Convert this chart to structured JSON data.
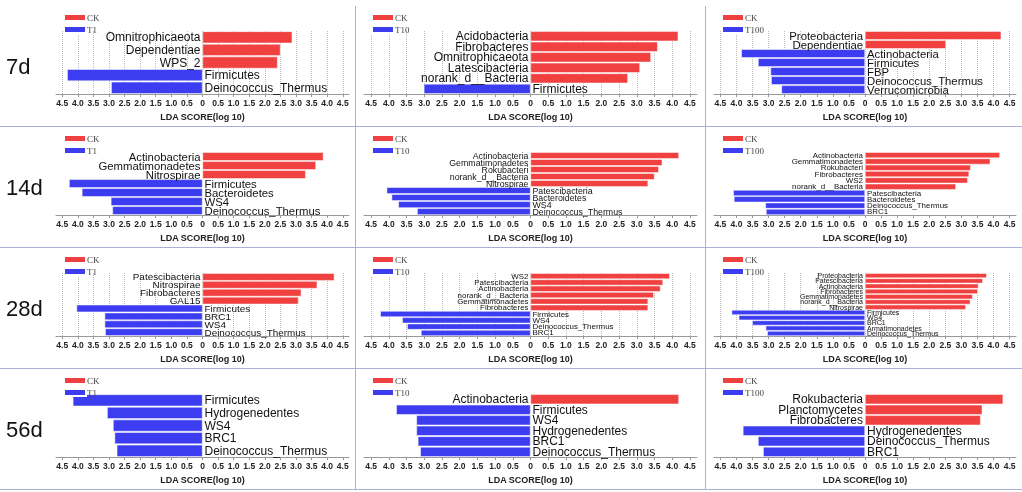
{
  "chart_data": [
    {
      "type": "bar",
      "orientation": "horizontal",
      "annotations": [
        "7d"
      ],
      "legend": "top left",
      "grid": "x",
      "tick_labels": "x",
      "xlabel": "LDA SCORE(log 10)",
      "xlim": [
        -4.7,
        4.7
      ],
      "xticks": [
        {
          "value": -4.5,
          "label": "4.5"
        },
        {
          "value": -4,
          "label": "4.0"
        },
        {
          "value": -3.5,
          "label": "3.5"
        },
        {
          "value": -3,
          "label": "3.0"
        },
        {
          "value": -2.5,
          "label": "2.5"
        },
        {
          "value": -2,
          "label": "2.0"
        },
        {
          "value": -1.5,
          "label": "1.5"
        },
        {
          "value": -1,
          "label": "1.0"
        },
        {
          "value": -0.5,
          "label": "0.5"
        },
        0,
        0.5,
        {
          "value": 1,
          "label": "1.0"
        },
        1.5,
        {
          "value": 2,
          "label": "2.0"
        },
        2.5,
        {
          "value": 3,
          "label": "3.0"
        },
        3.5,
        {
          "value": 4,
          "label": "4.0"
        },
        4.5
      ],
      "categories": [
        "Omnitrophicaeota",
        "Dependentiae",
        "WPS_2",
        "Firmicutes",
        "Deinococcus_Thermus"
      ],
      "series": [
        {
          "name": "CK",
          "color": "#f04040",
          "values": [
            2.88,
            2.5,
            2.41,
            null,
            null
          ]
        },
        {
          "name": "T1",
          "color": "#3c3cf0",
          "values": [
            null,
            null,
            null,
            -4.34,
            -2.93
          ]
        }
      ]
    },
    {
      "type": "bar",
      "orientation": "horizontal",
      "legend": "top left",
      "grid": "x",
      "tick_labels": "x",
      "xlabel": "LDA SCORE(log 10)",
      "xlim": [
        -4.7,
        4.7
      ],
      "xticks": [
        {
          "value": -4.5,
          "label": "4.5"
        },
        {
          "value": -4,
          "label": "4.0"
        },
        {
          "value": -3.5,
          "label": "3.5"
        },
        {
          "value": -3,
          "label": "3.0"
        },
        {
          "value": -2.5,
          "label": "2.5"
        },
        {
          "value": -2,
          "label": "2.0"
        },
        {
          "value": -1.5,
          "label": "1.5"
        },
        {
          "value": -1,
          "label": "1.0"
        },
        {
          "value": -0.5,
          "label": "0.5"
        },
        0,
        0.5,
        {
          "value": 1,
          "label": "1.0"
        },
        1.5,
        {
          "value": 2,
          "label": "2.0"
        },
        2.5,
        {
          "value": 3,
          "label": "3.0"
        },
        3.5,
        {
          "value": 4,
          "label": "4.0"
        },
        4.5
      ],
      "categories": [
        "Acidobacteria",
        "Fibrobacteres",
        "Omnitrophicaeota",
        "Latescibacteria",
        "norank_d__Bacteria",
        "Firmicutes"
      ],
      "series": [
        {
          "name": "CK",
          "color": "#f04040",
          "values": [
            4.17,
            3.59,
            3.4,
            3.09,
            2.75,
            null
          ]
        },
        {
          "name": "T10",
          "color": "#3c3cf0",
          "values": [
            null,
            null,
            null,
            null,
            null,
            -3.01
          ]
        }
      ]
    },
    {
      "type": "bar",
      "orientation": "horizontal",
      "legend": "top left",
      "grid": "x",
      "tick_labels": "x",
      "xlabel": "LDA SCORE(log 10)",
      "xlim": [
        -4.7,
        4.7
      ],
      "xticks": [
        {
          "value": -4.5,
          "label": "4.5"
        },
        {
          "value": -4,
          "label": "4.0"
        },
        {
          "value": -3.5,
          "label": "3.5"
        },
        {
          "value": -3,
          "label": "3.0"
        },
        {
          "value": -2.5,
          "label": "2.5"
        },
        {
          "value": -2,
          "label": "2.0"
        },
        {
          "value": -1.5,
          "label": "1.5"
        },
        {
          "value": -1,
          "label": "1.0"
        },
        {
          "value": -0.5,
          "label": "0.5"
        },
        0,
        0.5,
        {
          "value": 1,
          "label": "1.0"
        },
        1.5,
        {
          "value": 2,
          "label": "2.0"
        },
        2.5,
        {
          "value": 3,
          "label": "3.0"
        },
        3.5,
        {
          "value": 4,
          "label": "4.0"
        },
        4.5
      ],
      "categories": [
        "Proteobacteria",
        "Dependentiae",
        "Actinobacteria",
        "Firmicutes",
        "FBP",
        "Deinococcus_Thermus",
        "Verrucomicrobia"
      ],
      "series": [
        {
          "name": "CK",
          "color": "#f04040",
          "values": [
            4.24,
            2.52,
            null,
            null,
            null,
            null,
            null
          ]
        },
        {
          "name": "T100",
          "color": "#3c3cf0",
          "values": [
            null,
            null,
            -3.85,
            -3.33,
            -2.94,
            -2.92,
            -2.6
          ]
        }
      ]
    },
    {
      "type": "bar",
      "orientation": "horizontal",
      "annotations": [
        "14d"
      ],
      "legend": "top left",
      "tick_labels": "x",
      "xlabel": "LDA SCORE(log 10)",
      "xlim": [
        -4.7,
        4.7
      ],
      "xticks": [
        {
          "value": -4.5,
          "label": "4.5"
        },
        {
          "value": -4,
          "label": "4.0"
        },
        {
          "value": -3.5,
          "label": "3.5"
        },
        {
          "value": -3,
          "label": "3.0"
        },
        {
          "value": -2.5,
          "label": "2.5"
        },
        {
          "value": -2,
          "label": "2.0"
        },
        {
          "value": -1.5,
          "label": "1.5"
        },
        {
          "value": -1,
          "label": "1.0"
        },
        {
          "value": -0.5,
          "label": "0.5"
        },
        0,
        0.5,
        {
          "value": 1,
          "label": "1.0"
        },
        1.5,
        {
          "value": 2,
          "label": "2.0"
        },
        2.5,
        {
          "value": 3,
          "label": "3.0"
        },
        3.5,
        {
          "value": 4,
          "label": "4.0"
        },
        4.5
      ],
      "categories": [
        "Actinobacteria",
        "Gemmatimonadetes",
        "Nitrospirae",
        "Firmicutes",
        "Bacteroidetes",
        "WS4",
        "Deinococcus_Thermus"
      ],
      "series": [
        {
          "name": "CK",
          "color": "#f04040",
          "values": [
            3.88,
            3.64,
            3.31,
            null,
            null,
            null,
            null
          ]
        },
        {
          "name": "T1",
          "color": "#3c3cf0",
          "values": [
            null,
            null,
            null,
            -4.28,
            -3.87,
            -2.94,
            -2.89
          ]
        }
      ]
    },
    {
      "type": "bar",
      "orientation": "horizontal",
      "legend": "top left",
      "tick_labels": "x",
      "xlabel": "LDA SCORE(log 10)",
      "xlim": [
        -4.7,
        4.7
      ],
      "xticks": [
        {
          "value": -4.5,
          "label": "4.5"
        },
        {
          "value": -4,
          "label": "4.0"
        },
        {
          "value": -3.5,
          "label": "3.5"
        },
        {
          "value": -3,
          "label": "3.0"
        },
        {
          "value": -2.5,
          "label": "2.5"
        },
        {
          "value": -2,
          "label": "2.0"
        },
        {
          "value": -1.5,
          "label": "1.5"
        },
        {
          "value": -1,
          "label": "1.0"
        },
        {
          "value": -0.5,
          "label": "0.5"
        },
        0,
        0.5,
        {
          "value": 1,
          "label": "1.0"
        },
        1.5,
        {
          "value": 2,
          "label": "2.0"
        },
        2.5,
        {
          "value": 3,
          "label": "3.0"
        },
        3.5,
        {
          "value": 4,
          "label": "4.0"
        },
        4.5
      ],
      "categories": [
        "Actinobacteria",
        "Gemmatimonadetes",
        "Rokubacteri",
        "norank_d__Bacteria",
        "Nitrospirae",
        "Patescibacteria",
        "Bacteroidetes",
        "WS4",
        "Deinococcus_Thermus"
      ],
      "series": [
        {
          "name": "CK",
          "color": "#f04040",
          "values": [
            4.19,
            3.72,
            3.62,
            3.5,
            3.32,
            null,
            null,
            null,
            null
          ]
        },
        {
          "name": "T10",
          "color": "#3c3cf0",
          "values": [
            null,
            null,
            null,
            null,
            null,
            -4.06,
            -3.92,
            -3.73,
            -3.2
          ]
        }
      ]
    },
    {
      "type": "bar",
      "orientation": "horizontal",
      "legend": "top left",
      "tick_labels": "x",
      "xlabel": "LDA SCORE(log 10)",
      "xlim": [
        -4.7,
        4.7
      ],
      "xticks": [
        {
          "value": -4.5,
          "label": "4.5"
        },
        {
          "value": -4,
          "label": "4.0"
        },
        {
          "value": -3.5,
          "label": "3.5"
        },
        {
          "value": -3,
          "label": "3.0"
        },
        {
          "value": -2.5,
          "label": "2.5"
        },
        {
          "value": -2,
          "label": "2.0"
        },
        {
          "value": -1.5,
          "label": "1.5"
        },
        {
          "value": -1,
          "label": "1.0"
        },
        {
          "value": -0.5,
          "label": "0.5"
        },
        0,
        0.5,
        {
          "value": 1,
          "label": "1.0"
        },
        1.5,
        {
          "value": 2,
          "label": "2.0"
        },
        2.5,
        {
          "value": 3,
          "label": "3.0"
        },
        3.5,
        {
          "value": 4,
          "label": "4.0"
        },
        4.5
      ],
      "categories": [
        "Actinobacteria",
        "Gemmatimonadetes",
        "Rokubacteri",
        "Fibrobacteres",
        "WS2",
        "norank_d__Bacteria",
        "Patescibacteria",
        "Bacteroidetes",
        "Deinococcus_Thermus",
        "BRC1"
      ],
      "series": [
        {
          "name": "CK",
          "color": "#f04040",
          "values": [
            4.2,
            3.9,
            3.29,
            3.24,
            3.2,
            2.83,
            null,
            null,
            null,
            null
          ]
        },
        {
          "name": "T100",
          "color": "#3c3cf0",
          "values": [
            null,
            null,
            null,
            null,
            null,
            null,
            -4.1,
            -4.08,
            -3.1,
            -3.08
          ]
        }
      ]
    },
    {
      "type": "bar",
      "orientation": "horizontal",
      "annotations": [
        "28d"
      ],
      "legend": "top left",
      "grid": "x",
      "tick_labels": "x",
      "xlabel": "LDA SCORE(log 10)",
      "xlim": [
        -4.7,
        4.7
      ],
      "xticks": [
        {
          "value": -4.5,
          "label": "4.5"
        },
        {
          "value": -4,
          "label": "4.0"
        },
        {
          "value": -3.5,
          "label": "3.5"
        },
        {
          "value": -3,
          "label": "3.0"
        },
        {
          "value": -2.5,
          "label": "2.5"
        },
        {
          "value": -2,
          "label": "2.0"
        },
        {
          "value": -1.5,
          "label": "1.5"
        },
        {
          "value": -1,
          "label": "1.0"
        },
        {
          "value": -0.5,
          "label": "0.5"
        },
        0,
        0.5,
        {
          "value": 1,
          "label": "1.0"
        },
        1.5,
        {
          "value": 2,
          "label": "2.0"
        },
        2.5,
        {
          "value": 3,
          "label": "3.0"
        },
        3.5,
        {
          "value": 4,
          "label": "4.0"
        },
        4.5
      ],
      "categories": [
        "Patescibacteria",
        "Nitrospirae",
        "Fibrobacteres",
        "GAL15",
        "Firmicutes",
        "BRC1",
        "WS4",
        "Deinococcus_Thermus"
      ],
      "series": [
        {
          "name": "CK",
          "color": "#f04040",
          "values": [
            4.23,
            3.68,
            3.17,
            3.08,
            null,
            null,
            null,
            null
          ]
        },
        {
          "name": "T1",
          "color": "#3c3cf0",
          "values": [
            null,
            null,
            null,
            null,
            -4.04,
            -3.14,
            -3.14,
            -3.12
          ]
        }
      ]
    },
    {
      "type": "bar",
      "orientation": "horizontal",
      "legend": "top left",
      "grid": "x",
      "tick_labels": "x",
      "xlabel": "LDA SCORE(log 10)",
      "xlim": [
        -4.7,
        4.7
      ],
      "xticks": [
        {
          "value": -4.5,
          "label": "4.5"
        },
        {
          "value": -4,
          "label": "4.0"
        },
        {
          "value": -3.5,
          "label": "3.5"
        },
        {
          "value": -3,
          "label": "3.0"
        },
        {
          "value": -2.5,
          "label": "2.5"
        },
        {
          "value": -2,
          "label": "2.0"
        },
        {
          "value": -1.5,
          "label": "1.5"
        },
        {
          "value": -1,
          "label": "1.0"
        },
        {
          "value": -0.5,
          "label": "0.5"
        },
        0,
        0.5,
        {
          "value": 1,
          "label": "1.0"
        },
        1.5,
        {
          "value": 2,
          "label": "2.0"
        },
        2.5,
        {
          "value": 3,
          "label": "3.0"
        },
        3.5,
        {
          "value": 4,
          "label": "4.0"
        },
        4.5
      ],
      "categories": [
        "WS2",
        "Patescibacteria",
        "Actinobacteria",
        "norank_d__Bacteria",
        "Gemmatimonadetes",
        "Fibrobacteres",
        "Firmicutes",
        "WS4",
        "Deinococcus_Thermus",
        "BRC1"
      ],
      "series": [
        {
          "name": "CK",
          "color": "#f04040",
          "values": [
            3.93,
            3.74,
            3.67,
            3.48,
            3.32,
            3.32,
            null,
            null,
            null,
            null
          ]
        },
        {
          "name": "T10",
          "color": "#3c3cf0",
          "values": [
            null,
            null,
            null,
            null,
            null,
            null,
            -4.24,
            -3.62,
            -3.48,
            -3.09
          ]
        }
      ]
    },
    {
      "type": "bar",
      "orientation": "horizontal",
      "legend": "top left",
      "grid": "x",
      "tick_labels": "x",
      "xlabel": "LDA SCORE(log 10)",
      "xlim": [
        -4.7,
        4.7
      ],
      "xticks": [
        {
          "value": -4.5,
          "label": "4.5"
        },
        {
          "value": -4,
          "label": "4.0"
        },
        {
          "value": -3.5,
          "label": "3.5"
        },
        {
          "value": -3,
          "label": "3.0"
        },
        {
          "value": -2.5,
          "label": "2.5"
        },
        {
          "value": -2,
          "label": "2.0"
        },
        {
          "value": -1.5,
          "label": "1.5"
        },
        {
          "value": -1,
          "label": "1.0"
        },
        {
          "value": -0.5,
          "label": "0.5"
        },
        0,
        0.5,
        {
          "value": 1,
          "label": "1.0"
        },
        1.5,
        {
          "value": 2,
          "label": "2.0"
        },
        2.5,
        {
          "value": 3,
          "label": "3.0"
        },
        3.5,
        {
          "value": 4,
          "label": "4.0"
        },
        4.5
      ],
      "categories": [
        "Proteobacteria",
        "Patescibacteria",
        "Actinobacteria",
        "Fibrobacteres",
        "Gemmatimonadetes",
        "norank_d__Bacteria",
        "Nitrospirae",
        "Firmicutes",
        "WS4",
        "BRC1",
        "Armatimonadetes",
        "Deinococcus_Thermus"
      ],
      "series": [
        {
          "name": "CK",
          "color": "#f04040",
          "values": [
            3.79,
            3.67,
            3.53,
            3.51,
            3.35,
            3.28,
            3.14,
            null,
            null,
            null,
            null,
            null
          ]
        },
        {
          "name": "T100",
          "color": "#3c3cf0",
          "values": [
            null,
            null,
            null,
            null,
            null,
            null,
            null,
            -4.15,
            -3.93,
            -3.51,
            -3.09,
            -3.04
          ]
        }
      ]
    },
    {
      "type": "bar",
      "orientation": "horizontal",
      "annotations": [
        "56d"
      ],
      "legend": "top left",
      "tick_labels": "x",
      "xlabel": "LDA SCORE(log 10)",
      "xlim": [
        -4.7,
        4.7
      ],
      "xticks": [
        {
          "value": -4.5,
          "label": "4.5"
        },
        {
          "value": -4,
          "label": "4.0"
        },
        {
          "value": -3.5,
          "label": "3.5"
        },
        {
          "value": -3,
          "label": "3.0"
        },
        {
          "value": -2.5,
          "label": "2.5"
        },
        {
          "value": -2,
          "label": "2.0"
        },
        {
          "value": -1.5,
          "label": "1.5"
        },
        {
          "value": -1,
          "label": "1.0"
        },
        {
          "value": -0.5,
          "label": "0.5"
        },
        0,
        0.5,
        {
          "value": 1,
          "label": "1.0"
        },
        1.5,
        {
          "value": 2,
          "label": "2.0"
        },
        2.5,
        {
          "value": 3,
          "label": "3.0"
        },
        3.5,
        {
          "value": 4,
          "label": "4.0"
        },
        4.5
      ],
      "categories": [
        "Firmicutes",
        "Hydrogenedentes",
        "WS4",
        "BRC1",
        "Deinococcus_Thermus"
      ],
      "series": [
        {
          "name": "CK",
          "color": "#f04040",
          "values": [
            null,
            null,
            null,
            null,
            null
          ]
        },
        {
          "name": "T1",
          "color": "#3c3cf0",
          "values": [
            -4.16,
            -3.06,
            -2.87,
            -2.82,
            -2.75
          ]
        }
      ]
    },
    {
      "type": "bar",
      "orientation": "horizontal",
      "legend": "top left",
      "tick_labels": "x",
      "xlabel": "LDA SCORE(log 10)",
      "xlim": [
        -4.7,
        4.7
      ],
      "xticks": [
        {
          "value": -4.5,
          "label": "4.5"
        },
        {
          "value": -4,
          "label": "4.0"
        },
        {
          "value": -3.5,
          "label": "3.5"
        },
        {
          "value": -3,
          "label": "3.0"
        },
        {
          "value": -2.5,
          "label": "2.5"
        },
        {
          "value": -2,
          "label": "2.0"
        },
        {
          "value": -1.5,
          "label": "1.5"
        },
        {
          "value": -1,
          "label": "1.0"
        },
        {
          "value": -0.5,
          "label": "0.5"
        },
        0,
        0.5,
        {
          "value": 1,
          "label": "1.0"
        },
        1.5,
        {
          "value": 2,
          "label": "2.0"
        },
        2.5,
        {
          "value": 3,
          "label": "3.0"
        },
        3.5,
        {
          "value": 4,
          "label": "4.0"
        },
        4.5
      ],
      "categories": [
        "Actinobacteria",
        "Firmicutes",
        "WS4",
        "Hydrogenedentes",
        "BRC1",
        "Deinococcus_Thermus"
      ],
      "series": [
        {
          "name": "CK",
          "color": "#f04040",
          "values": [
            4.19,
            null,
            null,
            null,
            null,
            null
          ]
        },
        {
          "name": "T10",
          "color": "#3c3cf0",
          "values": [
            null,
            -3.79,
            -3.22,
            -3.22,
            -3.18,
            -3.11
          ]
        }
      ]
    },
    {
      "type": "bar",
      "orientation": "horizontal",
      "legend": "top left",
      "tick_labels": "x",
      "xlabel": "LDA SCORE(log 10)",
      "xlim": [
        -4.7,
        4.7
      ],
      "xticks": [
        {
          "value": -4.5,
          "label": "4.5"
        },
        {
          "value": -4,
          "label": "4.0"
        },
        {
          "value": -3.5,
          "label": "3.5"
        },
        {
          "value": -3,
          "label": "3.0"
        },
        {
          "value": -2.5,
          "label": "2.5"
        },
        {
          "value": -2,
          "label": "2.0"
        },
        {
          "value": -1.5,
          "label": "1.5"
        },
        {
          "value": -1,
          "label": "1.0"
        },
        {
          "value": -0.5,
          "label": "0.5"
        },
        0,
        0.5,
        {
          "value": 1,
          "label": "1.0"
        },
        1.5,
        {
          "value": 2,
          "label": "2.0"
        },
        2.5,
        {
          "value": 3,
          "label": "3.0"
        },
        3.5,
        {
          "value": 4,
          "label": "4.0"
        },
        4.5
      ],
      "categories": [
        "Rokubacteria",
        "Planctomycetes",
        "Fibrobacteres",
        "Hydrogenedentes",
        "Deinococcus_Thermus",
        "BRC1"
      ],
      "series": [
        {
          "name": "CK",
          "color": "#f04040",
          "values": [
            4.3,
            3.65,
            3.6,
            null,
            null,
            null
          ]
        },
        {
          "name": "T100",
          "color": "#3c3cf0",
          "values": [
            null,
            null,
            null,
            -3.8,
            -3.33,
            -3.17
          ]
        }
      ]
    }
  ]
}
